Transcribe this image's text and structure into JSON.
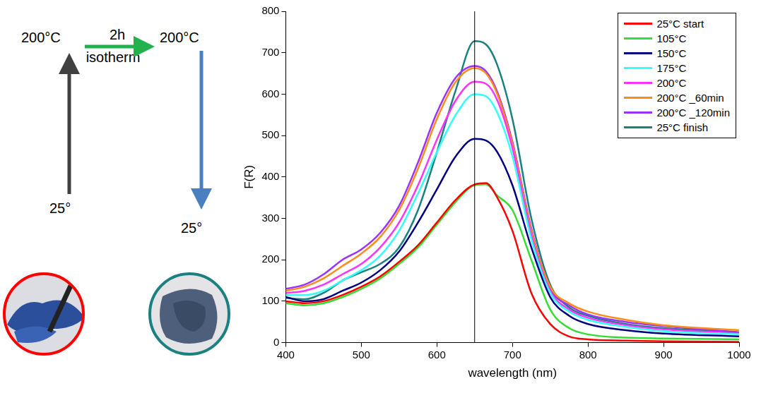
{
  "diagram": {
    "temp_top_left": "200°C",
    "hold_time": "2h",
    "hold_label": "isotherm",
    "temp_top_right": "200°C",
    "temp_bottom_left": "25°",
    "temp_bottom_right": "25°"
  },
  "chart_data": {
    "type": "line",
    "x_label": "wavelength (nm)",
    "y_label": "F(R)",
    "x": [
      400,
      425,
      450,
      475,
      500,
      525,
      550,
      575,
      600,
      625,
      650,
      665,
      680,
      700,
      725,
      750,
      775,
      800,
      850,
      900,
      1000
    ],
    "series": [
      {
        "name": "25°C start",
        "color": "#ff0000",
        "values": [
          100,
          95,
          100,
          115,
          135,
          160,
          195,
          235,
          290,
          345,
          382,
          385,
          350,
          270,
          120,
          45,
          15,
          8,
          5,
          3,
          2
        ]
      },
      {
        "name": "105°C",
        "color": "#33dd33",
        "values": [
          95,
          90,
          95,
          110,
          130,
          155,
          190,
          230,
          285,
          340,
          380,
          382,
          355,
          320,
          200,
          80,
          35,
          20,
          12,
          10,
          8
        ]
      },
      {
        "name": "150°C",
        "color": "#000080",
        "values": [
          110,
          100,
          105,
          125,
          145,
          175,
          220,
          290,
          370,
          450,
          492,
          488,
          460,
          380,
          230,
          110,
          65,
          45,
          30,
          22,
          15
        ]
      },
      {
        "name": "175°C",
        "color": "#33ffff",
        "values": [
          115,
          115,
          125,
          150,
          175,
          210,
          270,
          360,
          460,
          550,
          600,
          595,
          555,
          450,
          250,
          120,
          75,
          55,
          38,
          28,
          20
        ]
      },
      {
        "name": "200°C",
        "color": "#ff33ff",
        "values": [
          120,
          125,
          140,
          165,
          190,
          230,
          290,
          380,
          490,
          585,
          630,
          625,
          585,
          470,
          260,
          125,
          80,
          60,
          42,
          32,
          22
        ]
      },
      {
        "name": "200°C _60min",
        "color": "#ff8c1a",
        "values": [
          125,
          135,
          155,
          185,
          215,
          255,
          320,
          420,
          540,
          630,
          663,
          650,
          600,
          480,
          270,
          135,
          95,
          75,
          55,
          42,
          30
        ]
      },
      {
        "name": "200°C _120min",
        "color": "#9933ff",
        "values": [
          130,
          140,
          165,
          200,
          225,
          265,
          330,
          435,
          555,
          640,
          668,
          655,
          605,
          485,
          275,
          130,
          90,
          68,
          50,
          40,
          25
        ]
      },
      {
        "name": "25°C finish",
        "color": "#1a8080",
        "values": [
          108,
          105,
          120,
          150,
          170,
          190,
          230,
          320,
          460,
          610,
          728,
          720,
          670,
          540,
          300,
          140,
          85,
          65,
          45,
          35,
          25
        ]
      }
    ],
    "xlim": [
      400,
      1000
    ],
    "xticks": [
      400,
      500,
      600,
      700,
      800,
      900,
      1000
    ],
    "ylim": [
      0,
      800
    ],
    "yticks": [
      0,
      100,
      200,
      300,
      400,
      500,
      600,
      700,
      800
    ],
    "reference_line": {
      "x": 650
    },
    "grid": false,
    "legend": "upper right"
  }
}
